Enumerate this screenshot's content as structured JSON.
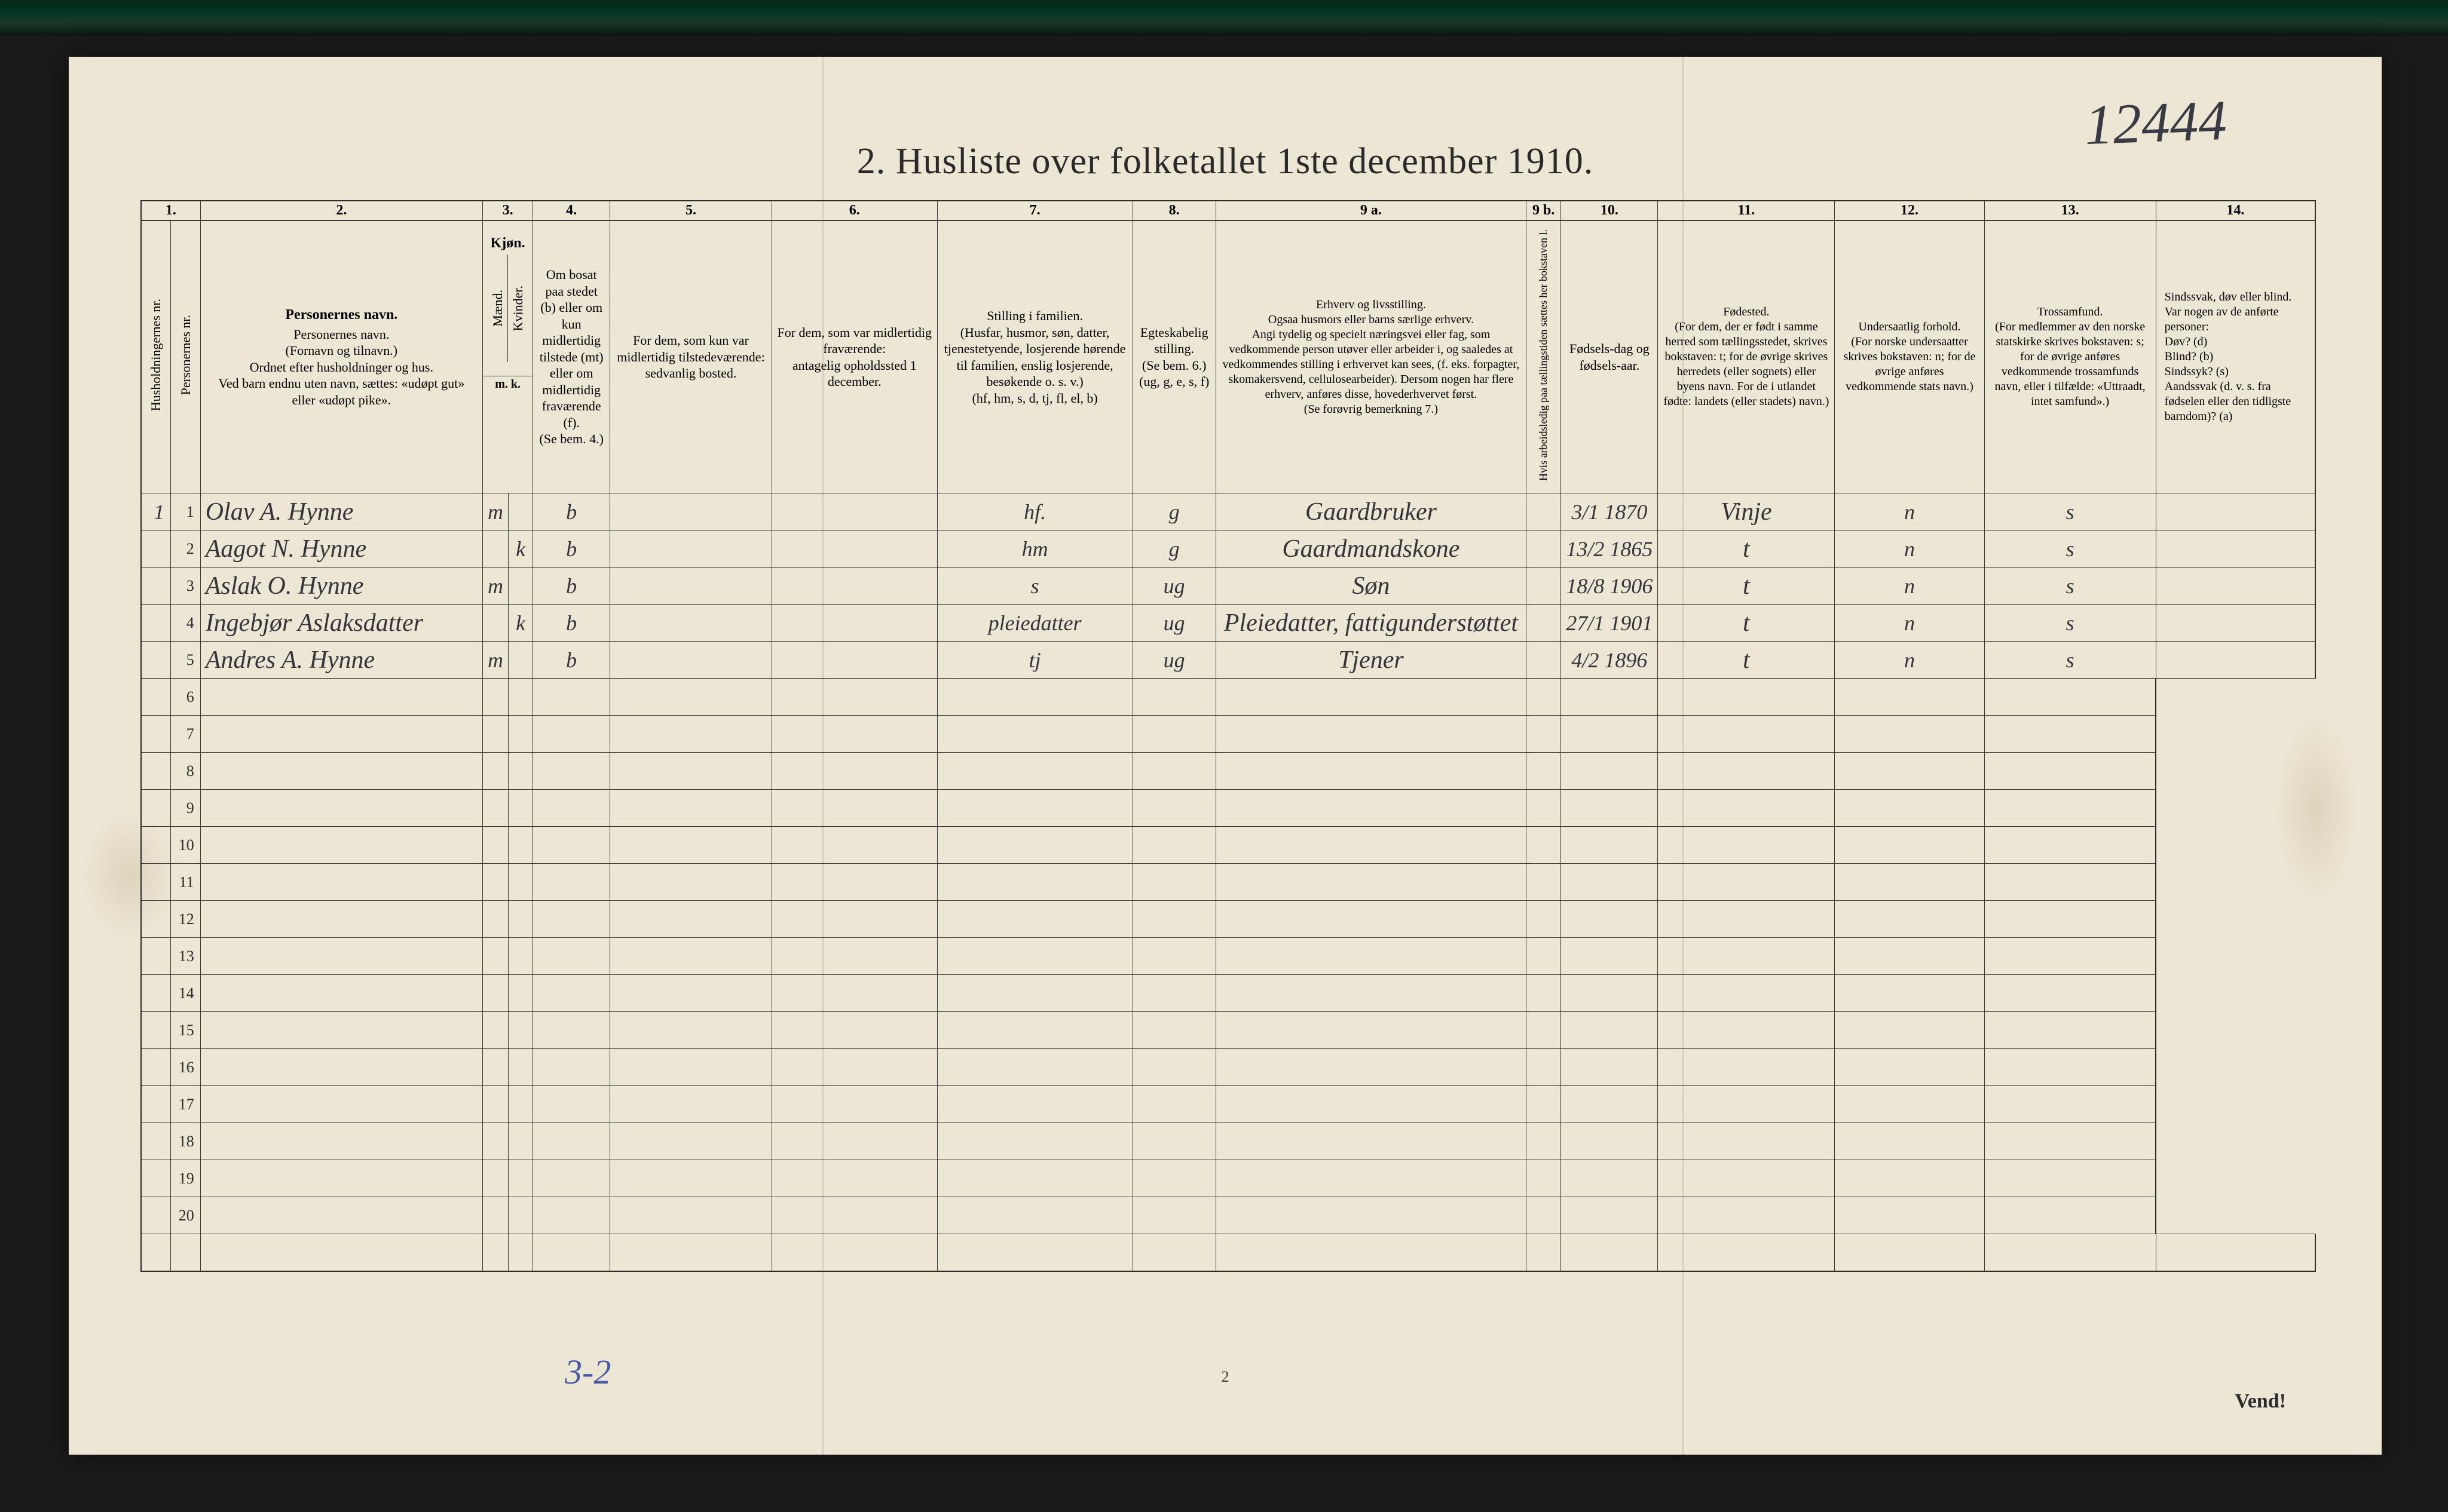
{
  "page_number_handwritten": "12444",
  "title": "2.  Husliste over folketallet 1ste december 1910.",
  "footer_blue": "3-2",
  "footer_page": "2",
  "vend": "Vend!",
  "column_numbers": [
    "1.",
    "2.",
    "3.",
    "4.",
    "5.",
    "6.",
    "7.",
    "8.",
    "9 a.",
    "9 b.",
    "10.",
    "11.",
    "12.",
    "13.",
    "14."
  ],
  "headers": {
    "hushold": "Husholdningernes nr.",
    "person": "Personernes nr.",
    "name": "Personernes navn.\n(Fornavn og tilnavn.)\nOrdnet efter husholdninger og hus.\nVed barn endnu uten navn, sættes: «udøpt gut» eller «udøpt pike».",
    "sex": "Kjøn.",
    "sex_m": "Mænd.",
    "sex_k": "Kvinder.",
    "sex_mk": "m.  k.",
    "bosat": "Om bosat paa stedet (b) eller om kun midlertidig tilstede (mt) eller om midlertidig fraværende (f).\n(Se bem. 4.)",
    "midl": "For dem, som kun var midlertidig tilstedeværende:\nsedvanlig bosted.",
    "frav": "For dem, som var midlertidig fraværende:\nantagelig opholdssted 1 december.",
    "stilling": "Stilling i familien.\n(Husfar, husmor, søn, datter, tjenestetyende, losjerende hørende til familien, enslig losjerende, besøkende o. s. v.)\n(hf, hm, s, d, tj, fl, el, b)",
    "egte": "Egteskabelig stilling.\n(Se bem. 6.)\n(ug, g, e, s, f)",
    "erhverv": "Erhverv og livsstilling.\nOgsaa husmors eller barns særlige erhverv.\nAngi tydelig og specielt næringsvei eller fag, som vedkommende person utøver eller arbeider i, og saaledes at vedkommendes stilling i erhvervet kan sees, (f. eks. forpagter, skomakersvend, cellulosearbeider). Dersom nogen har flere erhverv, anføres disse, hovederhvervet først.\n(Se forøvrig bemerkning 7.)",
    "arb": "Hvis arbeidsledig paa tællingstiden sættes her bokstaven l.",
    "fdag": "Fødsels-dag og fødsels-aar.",
    "fsted": "Fødested.\n(For dem, der er født i samme herred som tællingsstedet, skrives bokstaven: t; for de øvrige skrives herredets (eller sognets) eller byens navn. For de i utlandet fødte: landets (eller stadets) navn.)",
    "under": "Undersaatlig forhold.\n(For norske undersaatter skrives bokstaven: n; for de øvrige anføres vedkommende stats navn.)",
    "tros": "Trossamfund.\n(For medlemmer av den norske statskirke skrives bokstaven: s; for de øvrige anføres vedkommende trossamfunds navn, eller i tilfælde: «Uttraadt, intet samfund».)",
    "sind": "Sindssvak, døv eller blind.\nVar nogen av de anførte personer:\nDøv?        (d)\nBlind?      (b)\nSindssyk?   (s)\nAandssvak (d. v. s. fra fødselen eller den tidligste barndom)? (a)"
  },
  "rows": [
    {
      "h": "1",
      "p": "1",
      "name": "Olav A. Hynne",
      "sex_m": "m",
      "sex_k": "",
      "bosat": "b",
      "midl": "",
      "frav": "",
      "stilling": "hf.",
      "egte": "g",
      "erhverv": "Gaardbruker",
      "arb": "",
      "fdag": "3/1 1870",
      "fsted": "Vinje",
      "under": "n",
      "tros": "s",
      "sind": ""
    },
    {
      "h": "",
      "p": "2",
      "name": "Aagot N. Hynne",
      "sex_m": "",
      "sex_k": "k",
      "bosat": "b",
      "midl": "",
      "frav": "",
      "stilling": "hm",
      "egte": "g",
      "erhverv": "Gaardmandskone",
      "arb": "",
      "fdag": "13/2 1865",
      "fsted": "t",
      "under": "n",
      "tros": "s",
      "sind": ""
    },
    {
      "h": "",
      "p": "3",
      "name": "Aslak O. Hynne",
      "sex_m": "m",
      "sex_k": "",
      "bosat": "b",
      "midl": "",
      "frav": "",
      "stilling": "s",
      "egte": "ug",
      "erhverv": "Søn",
      "arb": "",
      "fdag": "18/8 1906",
      "fsted": "t",
      "under": "n",
      "tros": "s",
      "sind": ""
    },
    {
      "h": "",
      "p": "4",
      "name": "Ingebjør Aslaksdatter",
      "sex_m": "",
      "sex_k": "k",
      "bosat": "b",
      "midl": "",
      "frav": "",
      "stilling": "pleiedatter",
      "egte": "ug",
      "erhverv": "Pleiedatter, fattigunderstøttet",
      "arb": "",
      "fdag": "27/1 1901",
      "fsted": "t",
      "under": "n",
      "tros": "s",
      "sind": ""
    },
    {
      "h": "",
      "p": "5",
      "name": "Andres A. Hynne",
      "sex_m": "m",
      "sex_k": "",
      "bosat": "b",
      "midl": "",
      "frav": "",
      "stilling": "tj",
      "egte": "ug",
      "erhverv": "Tjener",
      "arb": "",
      "fdag": "4/2 1896",
      "fsted": "t",
      "under": "n",
      "tros": "s",
      "sind": ""
    }
  ],
  "empty_rows": [
    6,
    7,
    8,
    9,
    10,
    11,
    12,
    13,
    14,
    15,
    16,
    17,
    18,
    19,
    20
  ],
  "colors": {
    "paper": "#ece6d4",
    "ink": "#2a2a2a",
    "handwriting": "#34343a",
    "blue_pencil": "#4a5aa8",
    "border": "#3a3a3a"
  }
}
